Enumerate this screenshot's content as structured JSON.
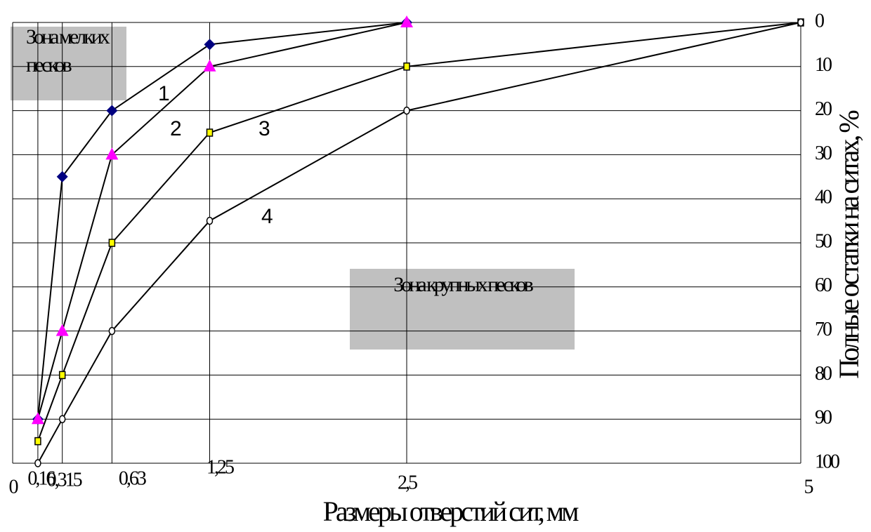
{
  "chart_data": {
    "type": "line",
    "x_label": "Размеры отверстий сит, мм",
    "y_label": "Полные остатки на ситах, %",
    "xlim": [
      0,
      5
    ],
    "xticks": [
      0,
      {
        "value": 0.16,
        "label": "0,16"
      },
      {
        "value": 0.315,
        "label": "0,315"
      },
      {
        "value": 0.63,
        "label": "0,63"
      },
      {
        "value": 1.25,
        "label": "1,25"
      },
      {
        "value": 2.5,
        "label": "2,5"
      },
      5
    ],
    "ylim": [
      100,
      0
    ],
    "yticks": [
      0,
      10,
      20,
      30,
      40,
      50,
      60,
      70,
      80,
      90,
      100
    ],
    "y_axis_side": "right",
    "grid": true,
    "line_color": "#000000",
    "series": [
      {
        "name": "1",
        "marker": "diamond",
        "color": "#000080",
        "x": [
          0.16,
          0.315,
          0.63,
          1.25,
          2.5
        ],
        "values": [
          90,
          35,
          20,
          5,
          0
        ]
      },
      {
        "name": "2",
        "marker": "triangle",
        "color": "#ff00ff",
        "x": [
          0.16,
          0.315,
          0.63,
          1.25,
          2.5
        ],
        "values": [
          90,
          70,
          30,
          10,
          0
        ]
      },
      {
        "name": "3",
        "marker": "square",
        "color": "#ffff00",
        "x": [
          0.16,
          0.315,
          0.63,
          1.25,
          2.5,
          5
        ],
        "values": [
          95,
          80,
          50,
          25,
          10,
          0
        ]
      },
      {
        "name": "4",
        "marker": "circle",
        "color": "#ffffff",
        "x": [
          0.16,
          0.315,
          0.63,
          1.25,
          2.5,
          5
        ],
        "values": [
          100,
          90,
          70,
          45,
          20,
          0
        ]
      }
    ],
    "annotations": [
      {
        "lines": [
          "Зона мелких",
          "песков"
        ],
        "color": "#c0c0c0"
      },
      {
        "lines": [
          "Зона крупных песков"
        ],
        "color": "#c0c0c0"
      }
    ]
  }
}
